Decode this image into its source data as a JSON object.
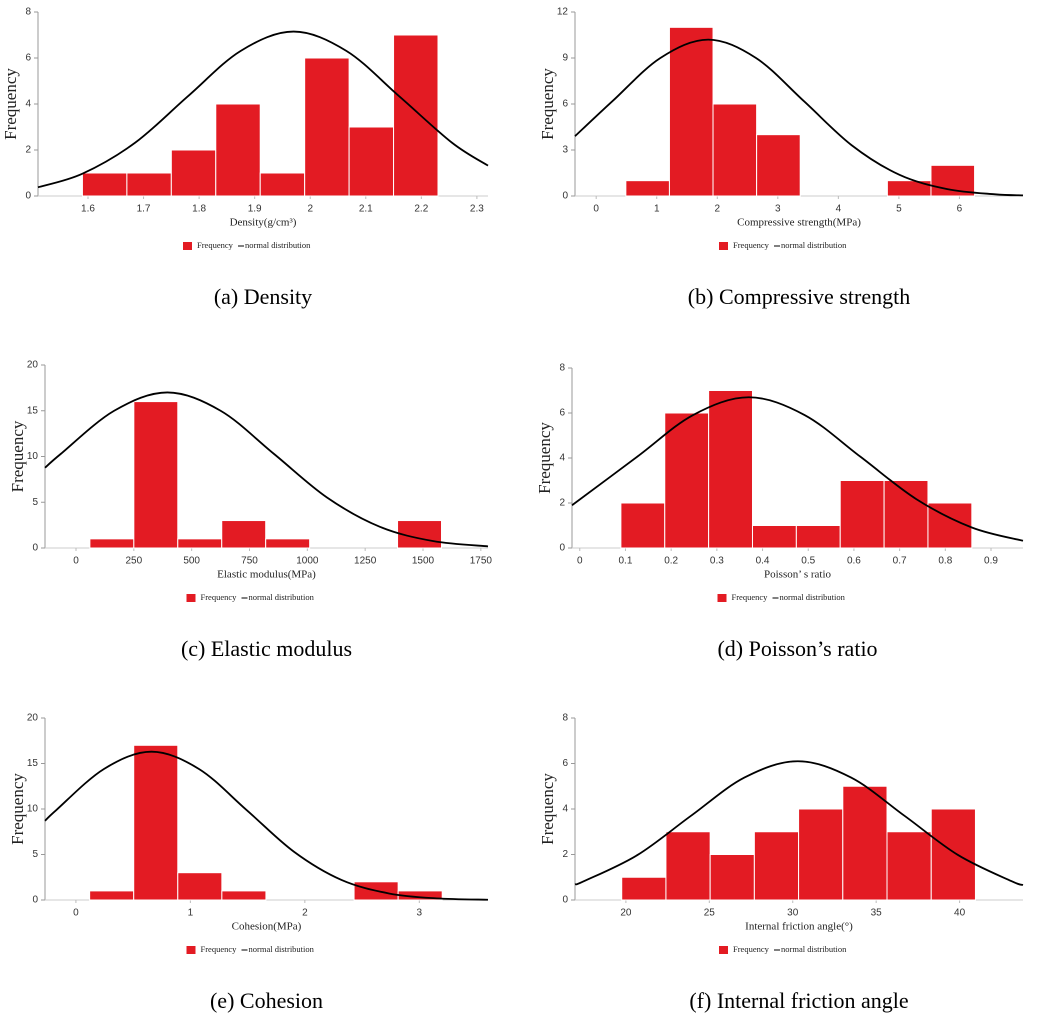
{
  "chart_data": [
    {
      "type": "histogram",
      "caption": "(a) Density",
      "x_label": "Density(g/cm³)",
      "y_label": "Frequency",
      "bins": [
        1.59,
        1.67,
        1.75,
        1.83,
        1.91,
        1.99,
        2.07,
        2.15,
        2.23
      ],
      "counts": [
        1,
        1,
        2,
        4,
        1,
        6,
        3,
        7
      ],
      "hist_name": "Frequency",
      "color": "#e31b23",
      "curve": {
        "name": "normal distribution",
        "color": "#000000",
        "x": [
          1.51,
          1.59,
          1.685,
          1.78,
          1.875,
          1.97,
          2.065,
          2.16,
          2.255,
          2.32
        ],
        "values": [
          0.38,
          0.97,
          2.32,
          4.34,
          6.31,
          7.15,
          6.31,
          4.34,
          2.32,
          1.32
        ]
      },
      "xlim": [
        1.51,
        2.32
      ],
      "ylim": [
        0,
        8
      ],
      "xticks": [
        1.6,
        1.7,
        1.8,
        1.9,
        2,
        2.1,
        2.2,
        2.3
      ],
      "yticks": [
        0,
        2,
        4,
        6,
        8
      ]
    },
    {
      "type": "histogram",
      "caption": "(b) Compressive strength",
      "x_label": "Compressive strength(MPa)",
      "y_label": "Frequency",
      "bins": [
        0.49,
        1.21,
        1.93,
        2.65,
        3.37,
        4.09,
        4.81,
        5.53,
        6.25
      ],
      "counts": [
        1,
        11,
        6,
        4,
        0,
        0,
        1,
        2
      ],
      "hist_name": "Frequency",
      "color": "#e31b23",
      "curve": {
        "name": "normal distribution",
        "color": "#000000",
        "x": [
          -0.35,
          0.27,
          1.06,
          1.85,
          2.64,
          3.43,
          4.22,
          5.01,
          5.8,
          6.59,
          7.05
        ],
        "values": [
          3.9,
          6.19,
          9.0,
          10.2,
          9.0,
          6.19,
          3.31,
          1.38,
          0.45,
          0.11,
          0.04
        ]
      },
      "xlim": [
        -0.35,
        7.05
      ],
      "ylim": [
        0,
        12
      ],
      "xticks": [
        0,
        1,
        2,
        3,
        4,
        5,
        6
      ],
      "yticks": [
        0,
        3,
        6,
        9,
        12
      ]
    },
    {
      "type": "histogram",
      "caption": "(c) Elastic modulus",
      "x_label": "Elastic modulus(MPa)",
      "y_label": "Frequency",
      "bins": [
        60,
        250,
        440,
        630,
        820,
        1010,
        1200,
        1390,
        1580
      ],
      "counts": [
        1,
        16,
        1,
        3,
        1,
        0,
        0,
        3
      ],
      "hist_name": "Frequency",
      "color": "#e31b23",
      "curve": {
        "name": "normal distribution",
        "color": "#000000",
        "x": [
          -134,
          -65,
          165,
          395,
          625,
          855,
          1085,
          1315,
          1545,
          1781
        ],
        "values": [
          8.77,
          10.3,
          15.0,
          17,
          15.0,
          10.3,
          5.52,
          2.3,
          0.75,
          0.18
        ]
      },
      "xlim": [
        -134,
        1781
      ],
      "ylim": [
        0,
        20
      ],
      "xticks": [
        0,
        250,
        500,
        750,
        1000,
        1250,
        1500,
        1750
      ],
      "yticks": [
        0,
        5,
        10,
        15,
        20
      ]
    },
    {
      "type": "histogram",
      "caption": "(d) Poisson’s ratio",
      "x_label": "Poisson’ s ratio",
      "y_label": "Frequency",
      "bins": [
        0.09,
        0.186,
        0.282,
        0.378,
        0.474,
        0.57,
        0.666,
        0.762,
        0.858
      ],
      "counts": [
        2,
        6,
        7,
        1,
        1,
        3,
        3,
        2
      ],
      "hist_name": "Frequency",
      "color": "#e31b23",
      "curve": {
        "name": "normal distribution",
        "color": "#000000",
        "x": [
          -0.017,
          0.126,
          0.248,
          0.37,
          0.492,
          0.614,
          0.736,
          0.858,
          0.97
        ],
        "values": [
          1.9,
          4.06,
          5.91,
          6.7,
          5.91,
          4.06,
          2.18,
          0.91,
          0.32
        ]
      },
      "xlim": [
        -0.017,
        0.97
      ],
      "ylim": [
        0,
        8
      ],
      "xticks": [
        0,
        0.1,
        0.2,
        0.3,
        0.4,
        0.5,
        0.6,
        0.7,
        0.8,
        0.9
      ],
      "yticks": [
        0,
        2,
        4,
        6,
        8
      ]
    },
    {
      "type": "histogram",
      "caption": "(e) Cohesion",
      "x_label": "Cohesion(MPa)",
      "y_label": "Frequency",
      "bins": [
        0.12,
        0.505,
        0.89,
        1.275,
        1.66,
        2.045,
        2.43,
        2.815,
        3.2
      ],
      "counts": [
        1,
        17,
        3,
        1,
        0,
        0,
        2,
        1
      ],
      "hist_name": "Frequency",
      "color": "#e31b23",
      "curve": {
        "name": "normal distribution",
        "color": "#000000",
        "x": [
          -0.27,
          -0.17,
          0.245,
          0.66,
          1.075,
          1.49,
          1.905,
          2.32,
          2.735,
          3.15,
          3.6
        ],
        "values": [
          8.7,
          9.9,
          14.4,
          16.3,
          14.4,
          9.9,
          5.3,
          2.2,
          0.72,
          0.18,
          0.03
        ]
      },
      "xlim": [
        -0.27,
        3.6
      ],
      "ylim": [
        0,
        20
      ],
      "xticks": [
        0,
        1,
        2,
        3
      ],
      "yticks": [
        0,
        5,
        10,
        15,
        20
      ]
    },
    {
      "type": "histogram",
      "caption": "(f) Internal friction angle",
      "x_label": "Internal friction angle(°)",
      "y_label": "Frequency",
      "bins": [
        19.75,
        22.4,
        25.05,
        27.7,
        30.35,
        33.0,
        35.65,
        38.3,
        40.95
      ],
      "counts": [
        1,
        3,
        2,
        3,
        4,
        5,
        3,
        4
      ],
      "hist_name": "Frequency",
      "color": "#e31b23",
      "curve": {
        "name": "normal distribution",
        "color": "#000000",
        "x": [
          16.95,
          17.5,
          20.7,
          23.9,
          27.1,
          30.3,
          33.5,
          36.7,
          39.9,
          43.1,
          43.8
        ],
        "values": [
          0.69,
          0.83,
          1.98,
          3.7,
          5.38,
          6.1,
          5.38,
          3.7,
          1.98,
          0.83,
          0.66
        ]
      },
      "xlim": [
        16.95,
        43.8
      ],
      "ylim": [
        0,
        8
      ],
      "xticks": [
        20,
        25,
        30,
        35,
        40
      ],
      "yticks": [
        0,
        2,
        4,
        6,
        8
      ]
    }
  ]
}
